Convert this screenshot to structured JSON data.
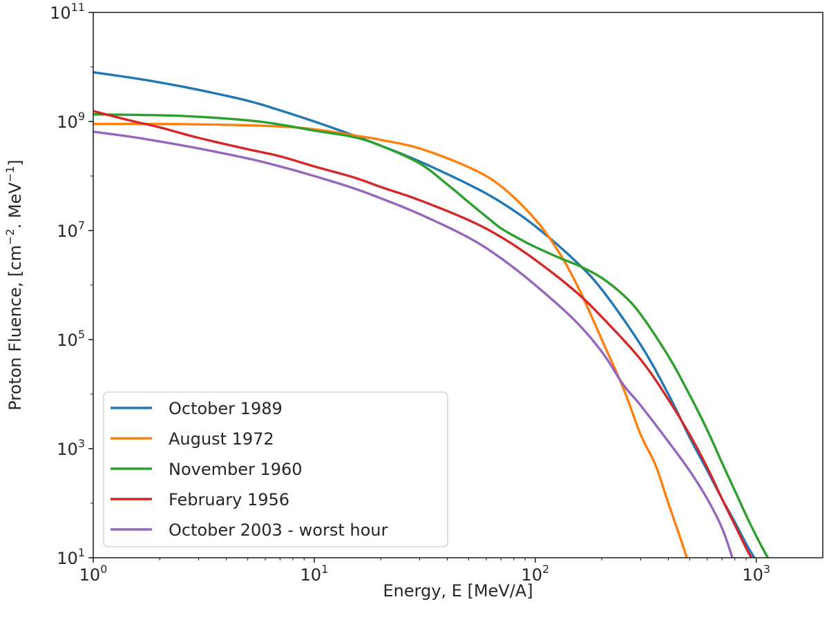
{
  "chart_data": {
    "type": "line",
    "title": "",
    "xlabel": "Energy, E [MeV/A]",
    "ylabel": "Proton Fluence, [cm",
    "ylabel_exp1": "−2",
    "ylabel_mid": ". MeV",
    "ylabel_exp2": "−1",
    "ylabel_end": "]",
    "x_scale": "log",
    "y_scale": "log",
    "xlim": [
      1,
      2000
    ],
    "ylim": [
      10,
      100000000000
    ],
    "x_ticks": [
      {
        "value": 1,
        "base": "10",
        "exp": "0"
      },
      {
        "value": 10,
        "base": "10",
        "exp": "1"
      },
      {
        "value": 100,
        "base": "10",
        "exp": "2"
      },
      {
        "value": 1000,
        "base": "10",
        "exp": "3"
      }
    ],
    "y_ticks": [
      {
        "value": 10,
        "base": "10",
        "exp": "1"
      },
      {
        "value": 1000,
        "base": "10",
        "exp": "3"
      },
      {
        "value": 100000,
        "base": "10",
        "exp": "5"
      },
      {
        "value": 10000000,
        "base": "10",
        "exp": "7"
      },
      {
        "value": 1000000000,
        "base": "10",
        "exp": "9"
      },
      {
        "value": 100000000000,
        "base": "10",
        "exp": "11"
      }
    ],
    "legend_position": "lower-left",
    "series": [
      {
        "name": "October 1989",
        "color": "#1f77b4",
        "points": [
          [
            1,
            8000000000.0
          ],
          [
            1.5,
            6300000000.0
          ],
          [
            2,
            5200000000.0
          ],
          [
            3,
            3800000000.0
          ],
          [
            5,
            2400000000.0
          ],
          [
            7,
            1600000000.0
          ],
          [
            10,
            1000000000.0
          ],
          [
            15,
            560000000.0
          ],
          [
            20,
            360000000.0
          ],
          [
            30,
            185000000.0
          ],
          [
            50,
            70000000.0
          ],
          [
            70,
            33000000.0
          ],
          [
            100,
            12000000.0
          ],
          [
            150,
            2900000.0
          ],
          [
            200,
            830000.0
          ],
          [
            300,
            80000.0
          ],
          [
            400,
            10000.0
          ],
          [
            500,
            1600.0
          ],
          [
            600,
            400
          ],
          [
            700,
            120
          ],
          [
            800,
            45
          ],
          [
            900,
            18
          ],
          [
            980,
            10
          ]
        ]
      },
      {
        "name": "August 1972",
        "color": "#ff7f0e",
        "points": [
          [
            1,
            900000000.0
          ],
          [
            2,
            900000000.0
          ],
          [
            4,
            870000000.0
          ],
          [
            7,
            810000000.0
          ],
          [
            10,
            720000000.0
          ],
          [
            15,
            560000000.0
          ],
          [
            20,
            460000000.0
          ],
          [
            30,
            320000000.0
          ],
          [
            50,
            145000000.0
          ],
          [
            70,
            65000000.0
          ],
          [
            100,
            16000000.0
          ],
          [
            130,
            3600000.0
          ],
          [
            160,
            750000.0
          ],
          [
            200,
            100000.0
          ],
          [
            250,
            13000.0
          ],
          [
            300,
            1800.0
          ],
          [
            350,
            500
          ],
          [
            400,
            100
          ],
          [
            450,
            25
          ],
          [
            485,
            10
          ]
        ]
      },
      {
        "name": "November 1960",
        "color": "#2ca02c",
        "points": [
          [
            1,
            1350000000.0
          ],
          [
            2,
            1300000000.0
          ],
          [
            3,
            1220000000.0
          ],
          [
            5,
            1050000000.0
          ],
          [
            7,
            880000000.0
          ],
          [
            10,
            680000000.0
          ],
          [
            15,
            520000000.0
          ],
          [
            20,
            360000000.0
          ],
          [
            30,
            170000000.0
          ],
          [
            40,
            70000000.0
          ],
          [
            50,
            33000000.0
          ],
          [
            60,
            18000000.0
          ],
          [
            70,
            11000000.0
          ],
          [
            85,
            7000000.0
          ],
          [
            100,
            5000000.0
          ],
          [
            130,
            3100000.0
          ],
          [
            160,
            2200000.0
          ],
          [
            200,
            1350000.0
          ],
          [
            250,
            660000.0
          ],
          [
            300,
            290000.0
          ],
          [
            400,
            50000.0
          ],
          [
            500,
            9600.0
          ],
          [
            600,
            2200.0
          ],
          [
            700,
            550
          ],
          [
            800,
            170
          ],
          [
            900,
            60
          ],
          [
            1000,
            25
          ],
          [
            1100,
            12
          ],
          [
            1130,
            10
          ]
        ]
      },
      {
        "name": "February 1956",
        "color": "#d62728",
        "points": [
          [
            1,
            1550000000.0
          ],
          [
            1.5,
            1020000000.0
          ],
          [
            2,
            780000000.0
          ],
          [
            3,
            500000000.0
          ],
          [
            5,
            310000000.0
          ],
          [
            7,
            230000000.0
          ],
          [
            10,
            150000000.0
          ],
          [
            15,
            95000000.0
          ],
          [
            20,
            63000000.0
          ],
          [
            30,
            36000000.0
          ],
          [
            50,
            15500000.0
          ],
          [
            70,
            7600000.0
          ],
          [
            100,
            2900000.0
          ],
          [
            150,
            800000.0
          ],
          [
            200,
            260000.0
          ],
          [
            300,
            43000.0
          ],
          [
            400,
            8000.0
          ],
          [
            500,
            1800.0
          ],
          [
            600,
            450
          ],
          [
            700,
            120
          ],
          [
            800,
            40
          ],
          [
            900,
            15
          ],
          [
            950,
            10
          ]
        ]
      },
      {
        "name": "October 2003 - worst hour",
        "color": "#9467bd",
        "points": [
          [
            1,
            650000000.0
          ],
          [
            1.5,
            520000000.0
          ],
          [
            2,
            430000000.0
          ],
          [
            3,
            320000000.0
          ],
          [
            5,
            210000000.0
          ],
          [
            7,
            150000000.0
          ],
          [
            10,
            100000000.0
          ],
          [
            15,
            60000000.0
          ],
          [
            20,
            39000000.0
          ],
          [
            30,
            20000000.0
          ],
          [
            50,
            7400000.0
          ],
          [
            70,
            3100000.0
          ],
          [
            100,
            1000000.0
          ],
          [
            150,
            230000.0
          ],
          [
            200,
            60000.0
          ],
          [
            250,
            15000.0
          ],
          [
            300,
            6200.0
          ],
          [
            400,
            1350.0
          ],
          [
            500,
            390
          ],
          [
            600,
            120
          ],
          [
            700,
            35
          ],
          [
            780,
            10
          ]
        ]
      }
    ]
  }
}
